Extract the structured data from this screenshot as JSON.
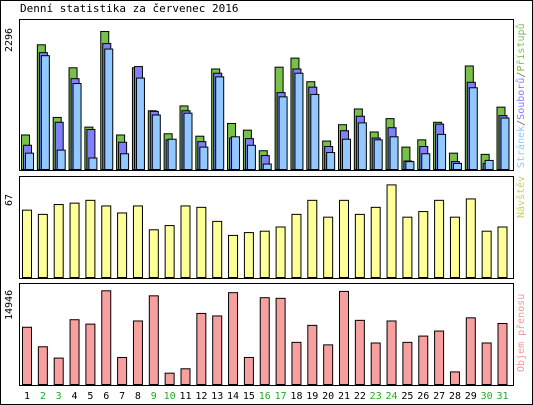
{
  "title": "Denní statistika za červenec 2016",
  "colors": {
    "hits": "#77c04a",
    "files": "#8080ff",
    "pages": "#90c8ff",
    "visits": "#ffff99",
    "kbytes": "#f8a0a0",
    "weekend": "#22aa22",
    "label_visits": "#cccc66",
    "label_kbytes": "#ee9999"
  },
  "legend": {
    "pages": "Stránek",
    "files": "Souborů",
    "hits": "Přístupů",
    "sep": "/",
    "visits": "Návštěv",
    "kbytes": "Objem přenosu"
  },
  "chart_data": {
    "type": "bar",
    "categories": [
      "1",
      "2",
      "3",
      "4",
      "5",
      "6",
      "7",
      "8",
      "9",
      "10",
      "11",
      "12",
      "13",
      "14",
      "15",
      "16",
      "17",
      "18",
      "19",
      "20",
      "21",
      "22",
      "23",
      "24",
      "25",
      "26",
      "27",
      "28",
      "29",
      "30",
      "31"
    ],
    "weekend_days": [
      "2",
      "3",
      "9",
      "10",
      "16",
      "17",
      "23",
      "24",
      "30",
      "31"
    ],
    "panels": [
      {
        "name": "hits_files_pages",
        "ymax_label": "2296",
        "ymax": 2296,
        "series": [
          {
            "name": "Přístupů",
            "values": [
              570,
              2060,
              860,
              1680,
              700,
              2280,
              570,
              1680,
              970,
              590,
              1050,
              550,
              1660,
              760,
              650,
              310,
              1690,
              1840,
              1450,
              470,
              740,
              1000,
              620,
              840,
              370,
              490,
              780,
              270,
              1710,
              250,
              1030
            ]
          },
          {
            "name": "Souborů",
            "values": [
              400,
              1930,
              780,
              1500,
              660,
              2080,
              450,
              1700,
              960,
              490,
              970,
              460,
              1590,
              520,
              510,
              230,
              1270,
              1660,
              1360,
              380,
              640,
              880,
              520,
              690,
              140,
              380,
              750,
              130,
              1440,
              100,
              890
            ]
          },
          {
            "name": "Stránek",
            "values": [
              270,
              1880,
              320,
              1420,
              190,
              1990,
              260,
              1510,
              900,
              500,
              930,
              370,
              1530,
              540,
              400,
              90,
              1200,
              1590,
              1240,
              280,
              500,
              770,
              490,
              540,
              130,
              260,
              580,
              100,
              1350,
              150,
              850
            ]
          }
        ]
      },
      {
        "name": "visits",
        "ymax_label": "67",
        "ymax": 67,
        "series": [
          {
            "name": "Návštěv",
            "values": [
              48,
              45,
              52,
              53,
              55,
              51,
              46,
              51,
              34,
              37,
              51,
              50,
              40,
              30,
              32,
              33,
              36,
              45,
              55,
              43,
              55,
              45,
              50,
              66,
              43,
              47,
              55,
              43,
              56,
              33,
              36
            ]
          }
        ]
      },
      {
        "name": "kbytes",
        "ymax_label": "14946",
        "ymax": 14946,
        "series": [
          {
            "name": "Objem přenosu",
            "values": [
              9100,
              6000,
              4200,
              10300,
              9600,
              14900,
              4300,
              10100,
              14100,
              1800,
              2500,
              11300,
              10900,
              14600,
              4300,
              13800,
              13700,
              6700,
              9400,
              6300,
              14800,
              10200,
              6600,
              10100,
              6700,
              7700,
              8500,
              2000,
              10600,
              6600,
              9700
            ]
          }
        ]
      }
    ]
  }
}
